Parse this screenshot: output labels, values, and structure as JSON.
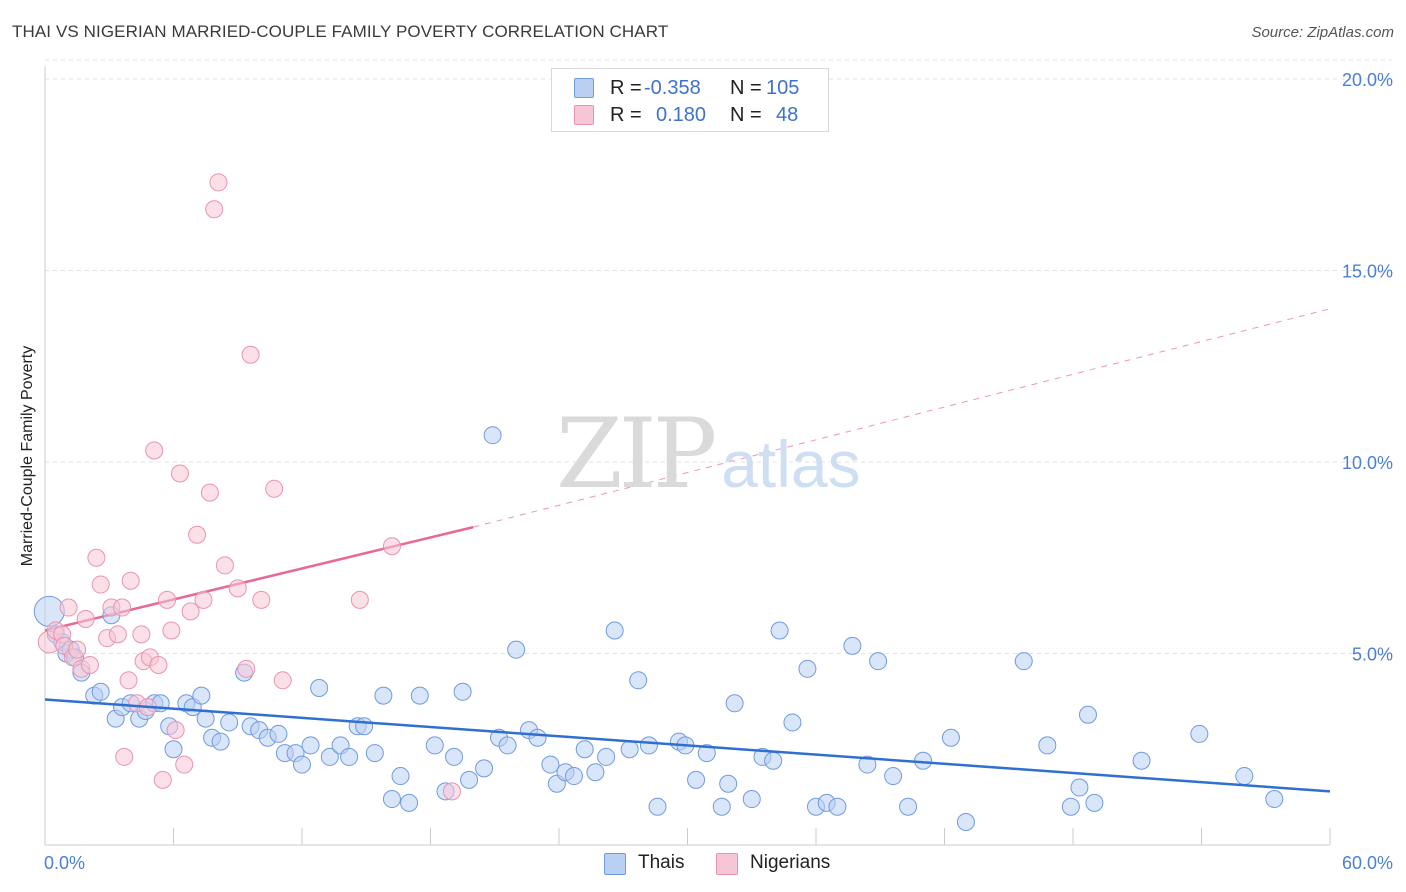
{
  "header": {
    "title": "THAI VS NIGERIAN MARRIED-COUPLE FAMILY POVERTY CORRELATION CHART",
    "source": "Source: ZipAtlas.com"
  },
  "watermark": {
    "zip": "ZIP",
    "atlas": "atlas"
  },
  "stats": [
    {
      "r_label": "R =",
      "r_value": "-0.358",
      "n_label": "N =",
      "n_value": "105"
    },
    {
      "r_label": "R =",
      "r_value": "0.180",
      "n_label": "N =",
      "n_value": "48"
    }
  ],
  "legend": [
    {
      "label": "Thais"
    },
    {
      "label": "Nigerians"
    }
  ],
  "colors": {
    "thais_fill": "#b9d0f2",
    "thais_stroke": "#6f9be0",
    "thais_line": "#2f6fd0",
    "nigerians_fill": "#f7c6d6",
    "nigerians_stroke": "#ea93b1",
    "nigerians_line": "#e8689a",
    "tick_text": "#4a7fd4",
    "grid": "#e2e2e2"
  },
  "chart_data": {
    "type": "scatter",
    "title": "THAI VS NIGERIAN MARRIED-COUPLE FAMILY POVERTY CORRELATION CHART",
    "xlabel": "",
    "ylabel": "Married-Couple Family Poverty",
    "xlim": [
      0,
      60
    ],
    "ylim": [
      0,
      21
    ],
    "x_tick_labels": [
      "0.0%",
      "60.0%"
    ],
    "y_ticks": [
      5,
      10,
      15,
      20
    ],
    "y_tick_labels": [
      "5.0%",
      "10.0%",
      "15.0%",
      "20.0%"
    ],
    "grid": true,
    "legend_position": "bottom-center",
    "series": [
      {
        "name": "Thais",
        "r": -0.358,
        "n": 105,
        "trend": {
          "x0": 0,
          "y0": 3.8,
          "x1": 60,
          "y1": 1.4
        },
        "points": [
          [
            0.2,
            6.1
          ],
          [
            0.5,
            5.5
          ],
          [
            0.8,
            5.3
          ],
          [
            1.0,
            5.0
          ],
          [
            1.2,
            5.1
          ],
          [
            1.4,
            4.9
          ],
          [
            1.7,
            4.5
          ],
          [
            2.3,
            3.9
          ],
          [
            2.6,
            4.0
          ],
          [
            3.1,
            6.0
          ],
          [
            3.3,
            3.3
          ],
          [
            3.6,
            3.6
          ],
          [
            4.0,
            3.7
          ],
          [
            4.4,
            3.3
          ],
          [
            4.7,
            3.5
          ],
          [
            5.1,
            3.7
          ],
          [
            5.4,
            3.7
          ],
          [
            5.8,
            3.1
          ],
          [
            6.0,
            2.5
          ],
          [
            6.6,
            3.7
          ],
          [
            6.9,
            3.6
          ],
          [
            7.3,
            3.9
          ],
          [
            7.5,
            3.3
          ],
          [
            7.8,
            2.8
          ],
          [
            8.2,
            2.7
          ],
          [
            8.6,
            3.2
          ],
          [
            9.3,
            4.5
          ],
          [
            9.6,
            3.1
          ],
          [
            10.0,
            3.0
          ],
          [
            10.4,
            2.8
          ],
          [
            10.9,
            2.9
          ],
          [
            11.2,
            2.4
          ],
          [
            11.7,
            2.4
          ],
          [
            12.0,
            2.1
          ],
          [
            12.4,
            2.6
          ],
          [
            12.8,
            4.1
          ],
          [
            13.3,
            2.3
          ],
          [
            13.8,
            2.6
          ],
          [
            14.2,
            2.3
          ],
          [
            14.6,
            3.1
          ],
          [
            14.9,
            3.1
          ],
          [
            15.4,
            2.4
          ],
          [
            15.8,
            3.9
          ],
          [
            16.2,
            1.2
          ],
          [
            16.6,
            1.8
          ],
          [
            17.0,
            1.1
          ],
          [
            17.5,
            3.9
          ],
          [
            18.2,
            2.6
          ],
          [
            18.7,
            1.4
          ],
          [
            19.1,
            2.3
          ],
          [
            19.5,
            4.0
          ],
          [
            19.8,
            1.7
          ],
          [
            20.5,
            2.0
          ],
          [
            20.9,
            10.7
          ],
          [
            21.2,
            2.8
          ],
          [
            21.6,
            2.6
          ],
          [
            22.0,
            5.1
          ],
          [
            22.6,
            3.0
          ],
          [
            23.0,
            2.8
          ],
          [
            23.6,
            2.1
          ],
          [
            23.9,
            1.6
          ],
          [
            24.3,
            1.9
          ],
          [
            24.7,
            1.8
          ],
          [
            25.2,
            2.5
          ],
          [
            25.7,
            1.9
          ],
          [
            26.2,
            2.3
          ],
          [
            26.6,
            5.6
          ],
          [
            27.3,
            2.5
          ],
          [
            27.7,
            4.3
          ],
          [
            28.2,
            2.6
          ],
          [
            28.6,
            1.0
          ],
          [
            29.6,
            2.7
          ],
          [
            29.9,
            2.6
          ],
          [
            30.4,
            1.7
          ],
          [
            30.9,
            2.4
          ],
          [
            31.6,
            1.0
          ],
          [
            31.9,
            1.6
          ],
          [
            32.2,
            3.7
          ],
          [
            33.0,
            1.2
          ],
          [
            33.5,
            2.3
          ],
          [
            34.0,
            2.2
          ],
          [
            34.3,
            5.6
          ],
          [
            34.9,
            3.2
          ],
          [
            35.6,
            4.6
          ],
          [
            36.0,
            1.0
          ],
          [
            36.5,
            1.1
          ],
          [
            37.0,
            1.0
          ],
          [
            37.7,
            5.2
          ],
          [
            38.4,
            2.1
          ],
          [
            38.9,
            4.8
          ],
          [
            39.6,
            1.8
          ],
          [
            40.3,
            1.0
          ],
          [
            41.0,
            2.2
          ],
          [
            42.3,
            2.8
          ],
          [
            43.0,
            0.6
          ],
          [
            45.7,
            4.8
          ],
          [
            46.8,
            2.6
          ],
          [
            47.9,
            1.0
          ],
          [
            48.3,
            1.5
          ],
          [
            48.7,
            3.4
          ],
          [
            49.0,
            1.1
          ],
          [
            51.2,
            2.2
          ],
          [
            53.9,
            2.9
          ],
          [
            56.0,
            1.8
          ],
          [
            57.4,
            1.2
          ]
        ]
      },
      {
        "name": "Nigerians",
        "r": 0.18,
        "n": 48,
        "trend": {
          "x0": 0,
          "y0": 5.6,
          "x1": 20,
          "y1": 8.3,
          "dashed_to": {
            "x": 60,
            "y": 14.0
          }
        },
        "points": [
          [
            0.2,
            5.3
          ],
          [
            0.5,
            5.6
          ],
          [
            0.8,
            5.5
          ],
          [
            0.9,
            5.2
          ],
          [
            1.1,
            6.2
          ],
          [
            1.3,
            4.9
          ],
          [
            1.5,
            5.1
          ],
          [
            1.7,
            4.6
          ],
          [
            1.9,
            5.9
          ],
          [
            2.1,
            4.7
          ],
          [
            2.4,
            7.5
          ],
          [
            2.6,
            6.8
          ],
          [
            2.9,
            5.4
          ],
          [
            3.1,
            6.2
          ],
          [
            3.4,
            5.5
          ],
          [
            3.6,
            6.2
          ],
          [
            3.7,
            2.3
          ],
          [
            3.9,
            4.3
          ],
          [
            4.0,
            6.9
          ],
          [
            4.3,
            3.7
          ],
          [
            4.5,
            5.5
          ],
          [
            4.6,
            4.8
          ],
          [
            4.8,
            3.6
          ],
          [
            4.9,
            4.9
          ],
          [
            5.1,
            10.3
          ],
          [
            5.3,
            4.7
          ],
          [
            5.5,
            1.7
          ],
          [
            5.7,
            6.4
          ],
          [
            5.9,
            5.6
          ],
          [
            6.1,
            3.0
          ],
          [
            6.3,
            9.7
          ],
          [
            6.5,
            2.1
          ],
          [
            6.8,
            6.1
          ],
          [
            7.1,
            8.1
          ],
          [
            7.4,
            6.4
          ],
          [
            7.7,
            9.2
          ],
          [
            7.9,
            16.6
          ],
          [
            8.1,
            17.3
          ],
          [
            8.4,
            7.3
          ],
          [
            9.0,
            6.7
          ],
          [
            9.4,
            4.6
          ],
          [
            9.6,
            12.8
          ],
          [
            10.1,
            6.4
          ],
          [
            10.7,
            9.3
          ],
          [
            11.1,
            4.3
          ],
          [
            14.7,
            6.4
          ],
          [
            16.2,
            7.8
          ],
          [
            19.0,
            1.4
          ]
        ]
      }
    ]
  }
}
